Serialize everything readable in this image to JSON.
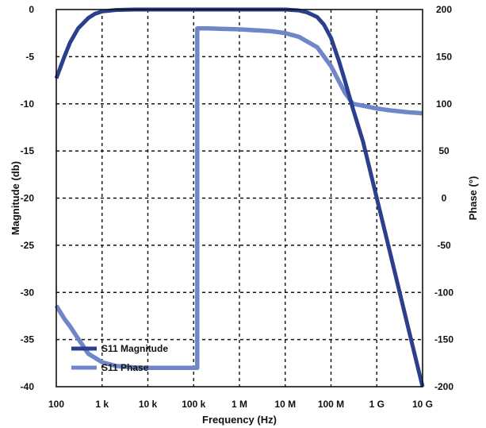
{
  "chart_data": {
    "type": "line",
    "title": "",
    "xlabel": "Frequency (Hz)",
    "ylabel_left": "Magnitude (db)",
    "ylabel_right": "Phase (°)",
    "x_scale": "log",
    "xlim": [
      100,
      10000000000
    ],
    "ylim_left": [
      -40,
      0
    ],
    "ylim_right": [
      -200,
      200
    ],
    "x_ticks": [
      {
        "value": 100,
        "label": "100"
      },
      {
        "value": 1000,
        "label": "1 k"
      },
      {
        "value": 10000,
        "label": "10 k"
      },
      {
        "value": 100000,
        "label": "100 k"
      },
      {
        "value": 1000000,
        "label": "1 M"
      },
      {
        "value": 10000000,
        "label": "10 M"
      },
      {
        "value": 100000000,
        "label": "100 M"
      },
      {
        "value": 1000000000,
        "label": "1 G"
      },
      {
        "value": 10000000000,
        "label": "10 G"
      }
    ],
    "y_left_ticks": [
      {
        "value": 0,
        "label": "0"
      },
      {
        "value": -5,
        "label": "-5"
      },
      {
        "value": -10,
        "label": "-10"
      },
      {
        "value": -15,
        "label": "-15"
      },
      {
        "value": -20,
        "label": "-20"
      },
      {
        "value": -25,
        "label": "-25"
      },
      {
        "value": -30,
        "label": "-30"
      },
      {
        "value": -35,
        "label": "-35"
      },
      {
        "value": -40,
        "label": "-40"
      }
    ],
    "y_right_ticks": [
      {
        "value": 200,
        "label": "200"
      },
      {
        "value": 150,
        "label": "150"
      },
      {
        "value": 100,
        "label": "100"
      },
      {
        "value": 50,
        "label": "50"
      },
      {
        "value": 0,
        "label": "0"
      },
      {
        "value": -50,
        "label": "-50"
      },
      {
        "value": -100,
        "label": "-100"
      },
      {
        "value": -150,
        "label": "-150"
      },
      {
        "value": -200,
        "label": "-200"
      }
    ],
    "grid": true,
    "legend_position": "bottom-left",
    "series": [
      {
        "name": "S11 Magnitude",
        "axis": "left",
        "color": "#2b3f8c",
        "x": [
          100,
          150,
          200,
          300,
          500,
          700,
          1000,
          2000,
          5000,
          10000,
          100000,
          1000000,
          10000000,
          20000000,
          30000000,
          50000000,
          70000000,
          100000000,
          150000000,
          200000000,
          300000000,
          500000000,
          1000000000,
          2000000000,
          5000000000,
          10000000000
        ],
        "y": [
          -7.3,
          -5.0,
          -3.5,
          -2.0,
          -0.9,
          -0.45,
          -0.2,
          -0.05,
          0,
          0,
          0,
          0,
          0,
          -0.1,
          -0.3,
          -0.8,
          -1.6,
          -3.0,
          -5.5,
          -7.5,
          -10.5,
          -14.0,
          -20.0,
          -26.0,
          -34.0,
          -40.0
        ]
      },
      {
        "name": "S11 Phase",
        "axis": "right",
        "color": "#6f86c8",
        "x": [
          100,
          150,
          200,
          300,
          500,
          1000,
          2000,
          5000,
          10000,
          50000,
          100000,
          120000,
          120001,
          200000,
          1000000,
          5000000,
          10000000,
          20000000,
          50000000,
          100000000,
          200000000,
          300000000,
          500000000,
          1000000000,
          2000000000,
          5000000000,
          10000000000
        ],
        "y": [
          -114,
          -128,
          -136,
          -149,
          -165,
          -174,
          -178,
          -179.6,
          -180,
          -180,
          -180,
          -180,
          180,
          180,
          179,
          177,
          175,
          171,
          160,
          140,
          112,
          100,
          98,
          95,
          93,
          91,
          90
        ]
      }
    ]
  }
}
